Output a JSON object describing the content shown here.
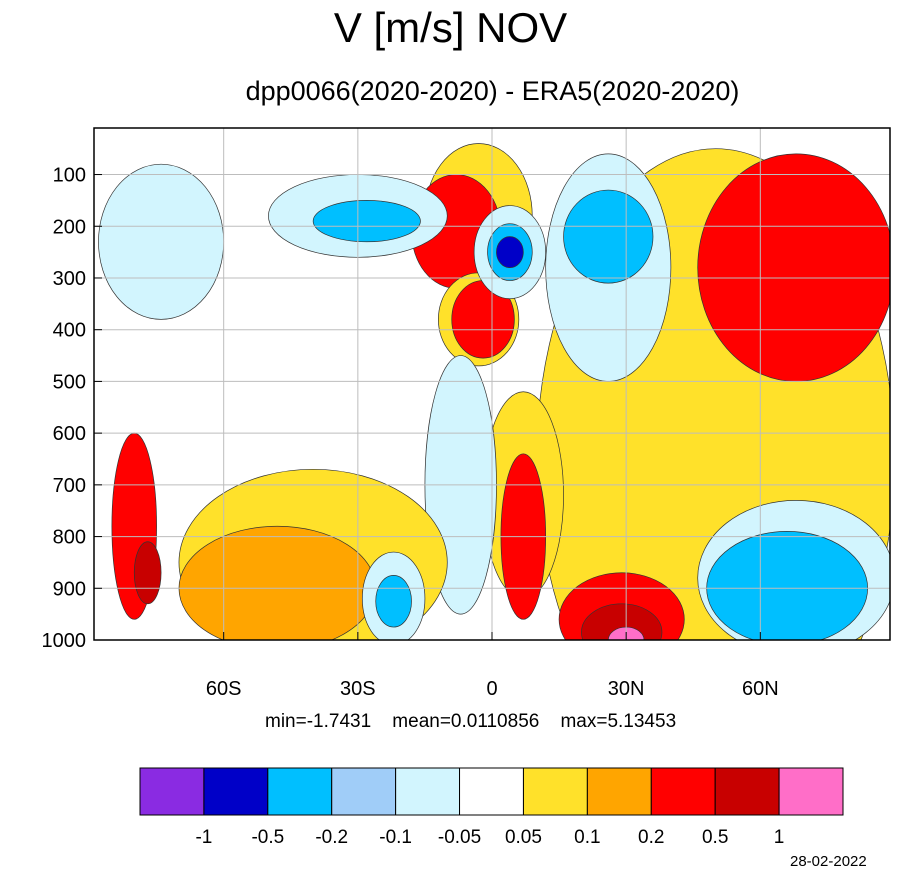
{
  "chart_data": {
    "type": "heatmap",
    "title": "V [m/s] NOV",
    "subtitle": "dpp0066(2020-2020) - ERA5(2020-2020)",
    "x_ticks": [
      {
        "value": -60,
        "label": "60S"
      },
      {
        "value": -30,
        "label": "30S"
      },
      {
        "value": 0,
        "label": "0"
      },
      {
        "value": 30,
        "label": "30N"
      },
      {
        "value": 60,
        "label": "60N"
      }
    ],
    "y_ticks": [
      100,
      200,
      300,
      400,
      500,
      600,
      700,
      800,
      900,
      1000
    ],
    "xlim": [
      -89,
      89
    ],
    "ylim": [
      10,
      1000
    ],
    "grid": true,
    "stats": {
      "min_label": "min=",
      "min": "-1.7431",
      "mean_label": "mean=",
      "mean": "0.0110856",
      "max_label": "max=",
      "max": "5.13453"
    },
    "colorbar": {
      "colors": [
        "#8a2be2",
        "#0000c8",
        "#00bfff",
        "#a0cdf8",
        "#d2f5fe",
        "#ffffff",
        "#ffe12a",
        "#ffa500",
        "#ff0000",
        "#c80000",
        "#ff6ec8"
      ],
      "levels": [
        "-1",
        "-0.5",
        "-0.2",
        "-0.1",
        "-0.05",
        "0.05",
        "0.1",
        "0.2",
        "0.5",
        "1"
      ]
    },
    "fields": [
      {
        "level": 0.05,
        "lat": 50,
        "p": 650,
        "sx": 40,
        "sy": 600
      },
      {
        "level": 0.2,
        "lat": 68,
        "p": 280,
        "sx": 22,
        "sy": 220
      },
      {
        "level": 0.05,
        "lat": -3,
        "p": 180,
        "sx": 12,
        "sy": 140
      },
      {
        "level": 0.2,
        "lat": -8,
        "p": 210,
        "sx": 10,
        "sy": 110
      },
      {
        "level": 0.05,
        "lat": -3,
        "p": 380,
        "sx": 9,
        "sy": 90
      },
      {
        "level": 0.2,
        "lat": -2,
        "p": 380,
        "sx": 7,
        "sy": 75
      },
      {
        "level": -0.05,
        "lat": 4,
        "p": 250,
        "sx": 8,
        "sy": 90
      },
      {
        "level": -0.2,
        "lat": 4,
        "p": 250,
        "sx": 5,
        "sy": 55
      },
      {
        "level": -0.5,
        "lat": 4,
        "p": 250,
        "sx": 3,
        "sy": 30
      },
      {
        "level": -0.05,
        "lat": 26,
        "p": 280,
        "sx": 14,
        "sy": 220
      },
      {
        "level": -0.2,
        "lat": 26,
        "p": 220,
        "sx": 10,
        "sy": 90
      },
      {
        "level": -0.05,
        "lat": -30,
        "p": 180,
        "sx": 20,
        "sy": 80
      },
      {
        "level": -0.2,
        "lat": -28,
        "p": 190,
        "sx": 12,
        "sy": 40
      },
      {
        "level": -0.05,
        "lat": -74,
        "p": 230,
        "sx": 14,
        "sy": 150
      },
      {
        "level": 0.05,
        "lat": 7,
        "p": 720,
        "sx": 9,
        "sy": 200
      },
      {
        "level": 0.2,
        "lat": 7,
        "p": 800,
        "sx": 5,
        "sy": 160
      },
      {
        "level": -0.05,
        "lat": -7,
        "p": 700,
        "sx": 8,
        "sy": 250
      },
      {
        "level": 0.05,
        "lat": -40,
        "p": 850,
        "sx": 30,
        "sy": 180
      },
      {
        "level": 0.1,
        "lat": -48,
        "p": 900,
        "sx": 22,
        "sy": 120
      },
      {
        "level": 0.2,
        "lat": 29,
        "p": 960,
        "sx": 14,
        "sy": 90
      },
      {
        "level": 0.5,
        "lat": 29,
        "p": 985,
        "sx": 9,
        "sy": 55
      },
      {
        "level": 1,
        "lat": 30,
        "p": 1000,
        "sx": 4,
        "sy": 25
      },
      {
        "level": -0.05,
        "lat": 68,
        "p": 880,
        "sx": 22,
        "sy": 150
      },
      {
        "level": -0.2,
        "lat": 66,
        "p": 900,
        "sx": 18,
        "sy": 110
      },
      {
        "level": -0.05,
        "lat": -22,
        "p": 920,
        "sx": 7,
        "sy": 90
      },
      {
        "level": -0.2,
        "lat": -22,
        "p": 925,
        "sx": 4,
        "sy": 50
      },
      {
        "level": 0.2,
        "lat": -80,
        "p": 780,
        "sx": 5,
        "sy": 180
      },
      {
        "level": 0.5,
        "lat": -77,
        "p": 870,
        "sx": 3,
        "sy": 60
      }
    ]
  },
  "date": "28-02-2022"
}
